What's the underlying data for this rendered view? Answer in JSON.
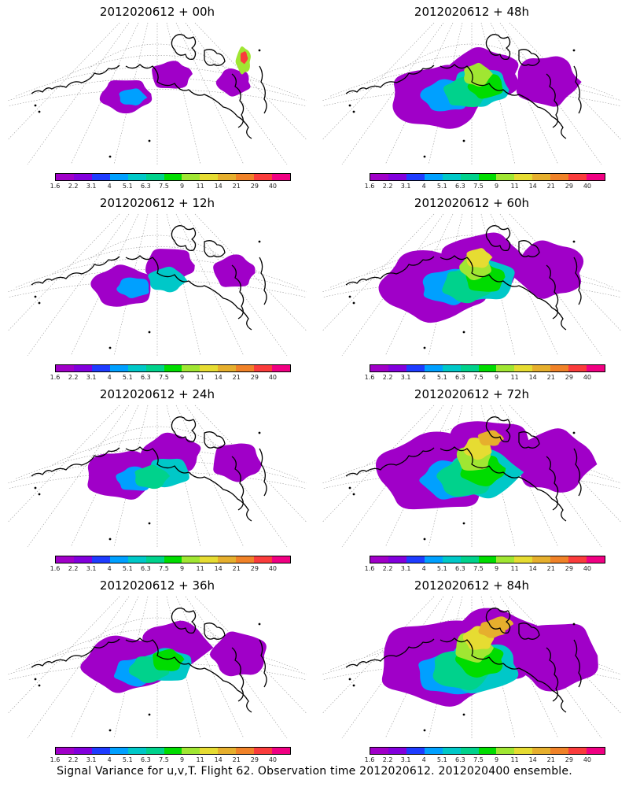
{
  "colorbar": {
    "labels": [
      "1.6",
      "2.2",
      "3.1",
      "4",
      "5.1",
      "6.3",
      "7.5",
      "9",
      "11",
      "14",
      "21",
      "29",
      "40"
    ],
    "colors": [
      "#a000c8",
      "#8200dc",
      "#1e3cff",
      "#00a0ff",
      "#00c8c8",
      "#00d28c",
      "#00dc00",
      "#a0e632",
      "#e6dc32",
      "#e6af2d",
      "#f08228",
      "#fa3c3c",
      "#f00082"
    ]
  },
  "panels": [
    {
      "title": "2012020612 + 00h",
      "level": 0
    },
    {
      "title": "2012020612 + 48h",
      "level": 4
    },
    {
      "title": "2012020612 + 12h",
      "level": 1
    },
    {
      "title": "2012020612 + 60h",
      "level": 5
    },
    {
      "title": "2012020612 + 24h",
      "level": 2
    },
    {
      "title": "2012020612 + 72h",
      "level": 6
    },
    {
      "title": "2012020612 + 36h",
      "level": 3
    },
    {
      "title": "2012020612 + 84h",
      "level": 7
    }
  ],
  "footer": "Signal Variance for u,v,T. Flight 62. Observation time 2012020612. 2012020400 ensemble."
}
